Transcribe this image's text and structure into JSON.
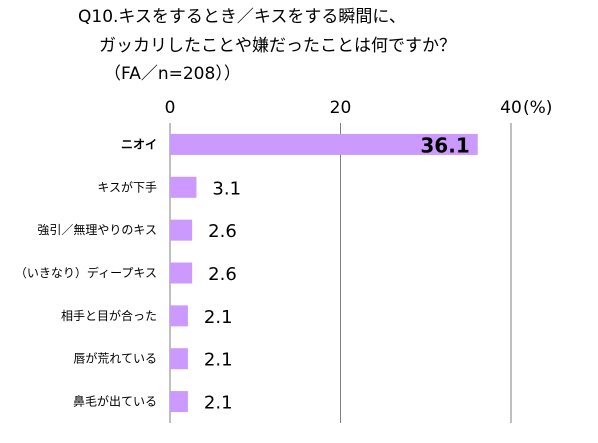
{
  "title": {
    "line1": "Q10.キスをするとき／キスをする瞬間に、",
    "line2": "ガッカリしたことや嫌だったことは何ですか？",
    "line3": "（FA／n=208））"
  },
  "chart_data": {
    "type": "bar",
    "orientation": "horizontal",
    "categories": [
      "ニオイ",
      "キスが下手",
      "強引／無理やりのキス",
      "（いきなり）ディープキス",
      "相手と目が合った",
      "唇が荒れている",
      "鼻毛が出ている"
    ],
    "values": [
      36.1,
      3.1,
      2.6,
      2.6,
      2.1,
      2.1,
      2.1
    ],
    "value_labels": [
      "36.1",
      "3.1",
      "2.6",
      "2.6",
      "2.1",
      "2.1",
      "2.1"
    ],
    "x_ticks": [
      "0",
      "20",
      "40"
    ],
    "x_tick_values": [
      0,
      20,
      40
    ],
    "xlim": [
      0,
      40
    ],
    "unit_label": "(%)",
    "bar_color": "#cc99ff",
    "grid": "vertical",
    "highlight_index": 0
  }
}
